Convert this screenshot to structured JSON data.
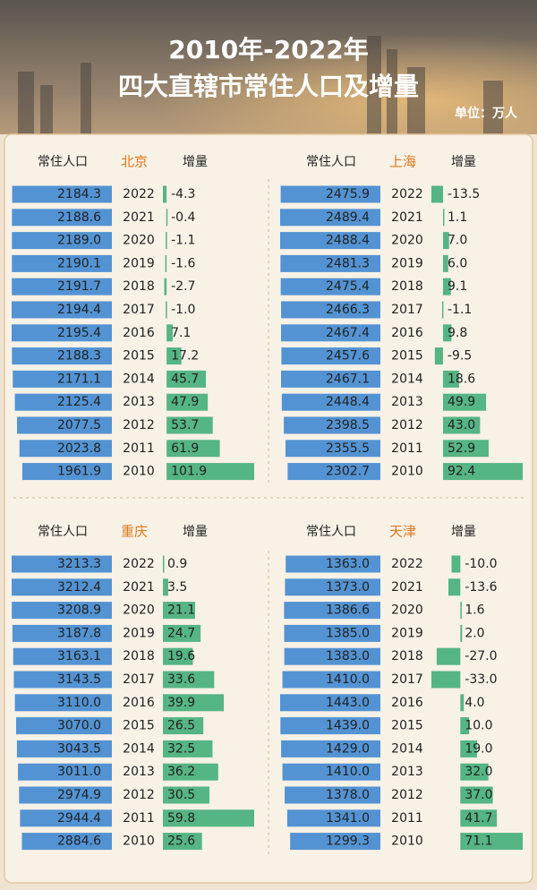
{
  "header": {
    "title": [
      "2010年-2022年",
      "四大直辖市常住人口及增量"
    ],
    "unit": "单位：万人"
  },
  "chart_data": [
    {
      "type": "bar",
      "title": "北京",
      "categories": [
        "2022",
        "2021",
        "2020",
        "2019",
        "2018",
        "2017",
        "2016",
        "2015",
        "2014",
        "2013",
        "2012",
        "2011",
        "2010"
      ],
      "series": [
        {
          "name": "常住人口",
          "color": "#5393d3",
          "values": [
            2184.3,
            2188.6,
            2189.0,
            2190.1,
            2191.7,
            2194.4,
            2195.4,
            2188.3,
            2171.1,
            2125.4,
            2077.5,
            2023.8,
            1961.9
          ],
          "value_labels": [
            "2184.3",
            "2188.6",
            "2189.0",
            "2190.1",
            "2191.7",
            "2194.4",
            "2195.4",
            "2188.3",
            "2171.1",
            "2125.4",
            "2077.5",
            "2023.8",
            "1961.9"
          ]
        },
        {
          "name": "增量",
          "color": "#55b584",
          "values": [
            -4.3,
            -0.4,
            -1.1,
            -1.6,
            -2.7,
            -1.0,
            7.1,
            17.2,
            45.7,
            47.9,
            53.7,
            61.9,
            101.9
          ],
          "value_labels": [
            "-4.3",
            "-0.4",
            "-1.1",
            "-1.6",
            "-2.7",
            "-1.0",
            "7.1",
            "17.2",
            "45.7",
            "47.9",
            "53.7",
            "61.9",
            "101.9"
          ]
        }
      ]
    },
    {
      "type": "bar",
      "title": "上海",
      "categories": [
        "2022",
        "2021",
        "2020",
        "2019",
        "2018",
        "2017",
        "2016",
        "2015",
        "2014",
        "2013",
        "2012",
        "2011",
        "2010"
      ],
      "series": [
        {
          "name": "常住人口",
          "color": "#5393d3",
          "values": [
            2475.9,
            2489.4,
            2488.4,
            2481.3,
            2475.4,
            2466.3,
            2467.4,
            2457.6,
            2467.1,
            2448.4,
            2398.5,
            2355.5,
            2302.7
          ],
          "value_labels": [
            "2475.9",
            "2489.4",
            "2488.4",
            "2481.3",
            "2475.4",
            "2466.3",
            "2467.4",
            "2457.6",
            "2467.1",
            "2448.4",
            "2398.5",
            "2355.5",
            "2302.7"
          ]
        },
        {
          "name": "增量",
          "color": "#55b584",
          "values": [
            -13.5,
            1.1,
            7.0,
            6.0,
            9.1,
            -1.1,
            9.8,
            -9.5,
            18.6,
            49.9,
            43.0,
            52.9,
            92.4
          ],
          "value_labels": [
            "-13.5",
            "1.1",
            "7.0",
            "6.0",
            "9.1",
            "-1.1",
            "9.8",
            "-9.5",
            "18.6",
            "49.9",
            "43.0",
            "52.9",
            "92.4"
          ]
        }
      ]
    },
    {
      "type": "bar",
      "title": "重庆",
      "categories": [
        "2022",
        "2021",
        "2020",
        "2019",
        "2018",
        "2017",
        "2016",
        "2015",
        "2014",
        "2013",
        "2012",
        "2011",
        "2010"
      ],
      "series": [
        {
          "name": "常住人口",
          "color": "#5393d3",
          "values": [
            3213.3,
            3212.4,
            3208.9,
            3187.8,
            3163.1,
            3143.5,
            3110.0,
            3070.0,
            3043.5,
            3011.0,
            2974.9,
            2944.4,
            2884.6
          ],
          "value_labels": [
            "3213.3",
            "3212.4",
            "3208.9",
            "3187.8",
            "3163.1",
            "3143.5",
            "3110.0",
            "3070.0",
            "3043.5",
            "3011.0",
            "2974.9",
            "2944.4",
            "2884.6"
          ]
        },
        {
          "name": "增量",
          "color": "#55b584",
          "values": [
            0.9,
            3.5,
            21.1,
            24.7,
            19.6,
            33.6,
            39.9,
            26.5,
            32.5,
            36.2,
            30.5,
            59.8,
            25.6
          ],
          "value_labels": [
            "0.9",
            "3.5",
            "21.1",
            "24.7",
            "19.6",
            "33.6",
            "39.9",
            "26.5",
            "32.5",
            "36.2",
            "30.5",
            "59.8",
            "25.6"
          ]
        }
      ]
    },
    {
      "type": "bar",
      "title": "天津",
      "categories": [
        "2022",
        "2021",
        "2020",
        "2019",
        "2018",
        "2017",
        "2016",
        "2015",
        "2014",
        "2013",
        "2012",
        "2011",
        "2010"
      ],
      "series": [
        {
          "name": "常住人口",
          "color": "#5393d3",
          "values": [
            1363.0,
            1373.0,
            1386.6,
            1385.0,
            1383.0,
            1410.0,
            1443.0,
            1439.0,
            1429.0,
            1410.0,
            1378.0,
            1341.0,
            1299.3
          ],
          "value_labels": [
            "1363.0",
            "1373.0",
            "1386.6",
            "1385.0",
            "1383.0",
            "1410.0",
            "1443.0",
            "1439.0",
            "1429.0",
            "1410.0",
            "1378.0",
            "1341.0",
            "1299.3"
          ]
        },
        {
          "name": "增量",
          "color": "#55b584",
          "values": [
            -10.0,
            -13.6,
            1.6,
            2.0,
            -27.0,
            -33.0,
            4.0,
            10.0,
            19.0,
            32.0,
            37.0,
            41.7,
            71.1
          ],
          "value_labels": [
            "-10.0",
            "-13.6",
            "1.6",
            "2.0",
            "-27.0",
            "-33.0",
            "4.0",
            "10.0",
            "19.0",
            "32.0",
            "37.0",
            "41.7",
            "71.1"
          ]
        }
      ]
    }
  ]
}
